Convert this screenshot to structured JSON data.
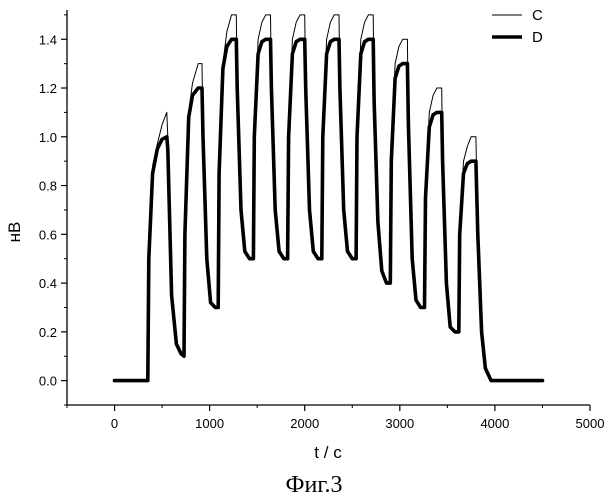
{
  "chart_data": {
    "type": "line",
    "xlabel": "t / c",
    "ylabel": "нВ",
    "caption": "Фиг.3",
    "xlim": [
      -500,
      5000
    ],
    "ylim": [
      -0.1,
      1.52
    ],
    "xticks": [
      0,
      1000,
      2000,
      3000,
      4000,
      5000
    ],
    "xtick_labels": [
      "0",
      "1000",
      "2000",
      "3000",
      "4000",
      "5000"
    ],
    "yticks": [
      0.0,
      0.2,
      0.4,
      0.6,
      0.8,
      1.0,
      1.2,
      1.4
    ],
    "ytick_labels": [
      "0.0",
      "0.2",
      "0.4",
      "0.6",
      "0.8",
      "1.0",
      "1.2",
      "1.4"
    ],
    "grid": false,
    "legend_position": "top-right",
    "series": [
      {
        "name": "C",
        "style": "thin",
        "color": "#000000",
        "x": [
          0,
          350,
          360,
          400,
          450,
          500,
          550,
          560,
          600,
          650,
          700,
          730,
          740,
          780,
          820,
          880,
          920,
          930,
          970,
          1010,
          1060,
          1090,
          1100,
          1140,
          1180,
          1230,
          1280,
          1290,
          1330,
          1370,
          1420,
          1460,
          1470,
          1510,
          1550,
          1590,
          1640,
          1650,
          1690,
          1730,
          1780,
          1820,
          1830,
          1870,
          1910,
          1950,
          2000,
          2010,
          2050,
          2090,
          2140,
          2180,
          2190,
          2230,
          2270,
          2310,
          2360,
          2370,
          2410,
          2450,
          2500,
          2540,
          2550,
          2590,
          2630,
          2670,
          2720,
          2730,
          2770,
          2810,
          2860,
          2900,
          2910,
          2950,
          2990,
          3030,
          3080,
          3090,
          3130,
          3170,
          3220,
          3260,
          3270,
          3310,
          3350,
          3390,
          3440,
          3450,
          3490,
          3530,
          3580,
          3620,
          3630,
          3670,
          3710,
          3750,
          3800,
          3820,
          3860,
          3900,
          3960,
          4500
        ],
        "y": [
          0,
          0,
          0.5,
          0.88,
          0.97,
          1.05,
          1.1,
          1.0,
          0.35,
          0.15,
          0.11,
          0.1,
          0.6,
          1.1,
          1.22,
          1.3,
          1.3,
          1.0,
          0.5,
          0.32,
          0.3,
          0.3,
          0.85,
          1.3,
          1.43,
          1.5,
          1.5,
          1.2,
          0.7,
          0.53,
          0.5,
          0.5,
          1.0,
          1.4,
          1.47,
          1.5,
          1.5,
          1.2,
          0.7,
          0.53,
          0.5,
          0.5,
          1.0,
          1.4,
          1.47,
          1.5,
          1.5,
          1.2,
          0.7,
          0.53,
          0.5,
          0.5,
          1.0,
          1.4,
          1.47,
          1.5,
          1.5,
          1.2,
          0.7,
          0.53,
          0.5,
          0.5,
          1.0,
          1.4,
          1.47,
          1.5,
          1.5,
          1.15,
          0.65,
          0.45,
          0.4,
          0.4,
          0.9,
          1.3,
          1.37,
          1.4,
          1.4,
          1.05,
          0.5,
          0.33,
          0.3,
          0.3,
          0.75,
          1.1,
          1.17,
          1.2,
          1.2,
          0.9,
          0.4,
          0.22,
          0.2,
          0.2,
          0.6,
          0.9,
          0.96,
          1.0,
          1.0,
          0.6,
          0.2,
          0.05,
          0.0,
          0.0
        ]
      },
      {
        "name": "D",
        "style": "thick",
        "color": "#000000",
        "x": [
          0,
          350,
          360,
          400,
          450,
          500,
          550,
          560,
          600,
          650,
          700,
          730,
          740,
          780,
          820,
          880,
          920,
          930,
          970,
          1010,
          1060,
          1090,
          1100,
          1140,
          1180,
          1230,
          1280,
          1290,
          1330,
          1370,
          1420,
          1460,
          1470,
          1510,
          1550,
          1590,
          1640,
          1650,
          1690,
          1730,
          1780,
          1820,
          1830,
          1870,
          1910,
          1950,
          2000,
          2010,
          2050,
          2090,
          2140,
          2180,
          2190,
          2230,
          2270,
          2310,
          2360,
          2370,
          2410,
          2450,
          2500,
          2540,
          2550,
          2590,
          2630,
          2670,
          2720,
          2730,
          2770,
          2810,
          2860,
          2900,
          2910,
          2950,
          2990,
          3030,
          3080,
          3090,
          3130,
          3170,
          3220,
          3260,
          3270,
          3310,
          3350,
          3390,
          3440,
          3450,
          3490,
          3530,
          3580,
          3620,
          3630,
          3670,
          3710,
          3750,
          3800,
          3820,
          3860,
          3900,
          3960,
          4500
        ],
        "y": [
          0,
          0,
          0.5,
          0.85,
          0.95,
          0.99,
          1.0,
          0.95,
          0.35,
          0.15,
          0.11,
          0.1,
          0.6,
          1.08,
          1.17,
          1.2,
          1.2,
          1.0,
          0.5,
          0.32,
          0.3,
          0.3,
          0.85,
          1.28,
          1.37,
          1.4,
          1.4,
          1.2,
          0.7,
          0.53,
          0.5,
          0.5,
          1.0,
          1.34,
          1.39,
          1.4,
          1.4,
          1.2,
          0.7,
          0.53,
          0.5,
          0.5,
          1.0,
          1.34,
          1.39,
          1.4,
          1.4,
          1.2,
          0.7,
          0.53,
          0.5,
          0.5,
          1.0,
          1.34,
          1.39,
          1.4,
          1.4,
          1.2,
          0.7,
          0.53,
          0.5,
          0.5,
          1.0,
          1.34,
          1.39,
          1.4,
          1.4,
          1.15,
          0.65,
          0.45,
          0.4,
          0.4,
          0.9,
          1.24,
          1.29,
          1.3,
          1.3,
          1.05,
          0.5,
          0.33,
          0.3,
          0.3,
          0.75,
          1.04,
          1.09,
          1.1,
          1.1,
          0.9,
          0.4,
          0.22,
          0.2,
          0.2,
          0.6,
          0.85,
          0.89,
          0.9,
          0.9,
          0.6,
          0.2,
          0.05,
          0.0,
          0.0
        ]
      }
    ]
  }
}
